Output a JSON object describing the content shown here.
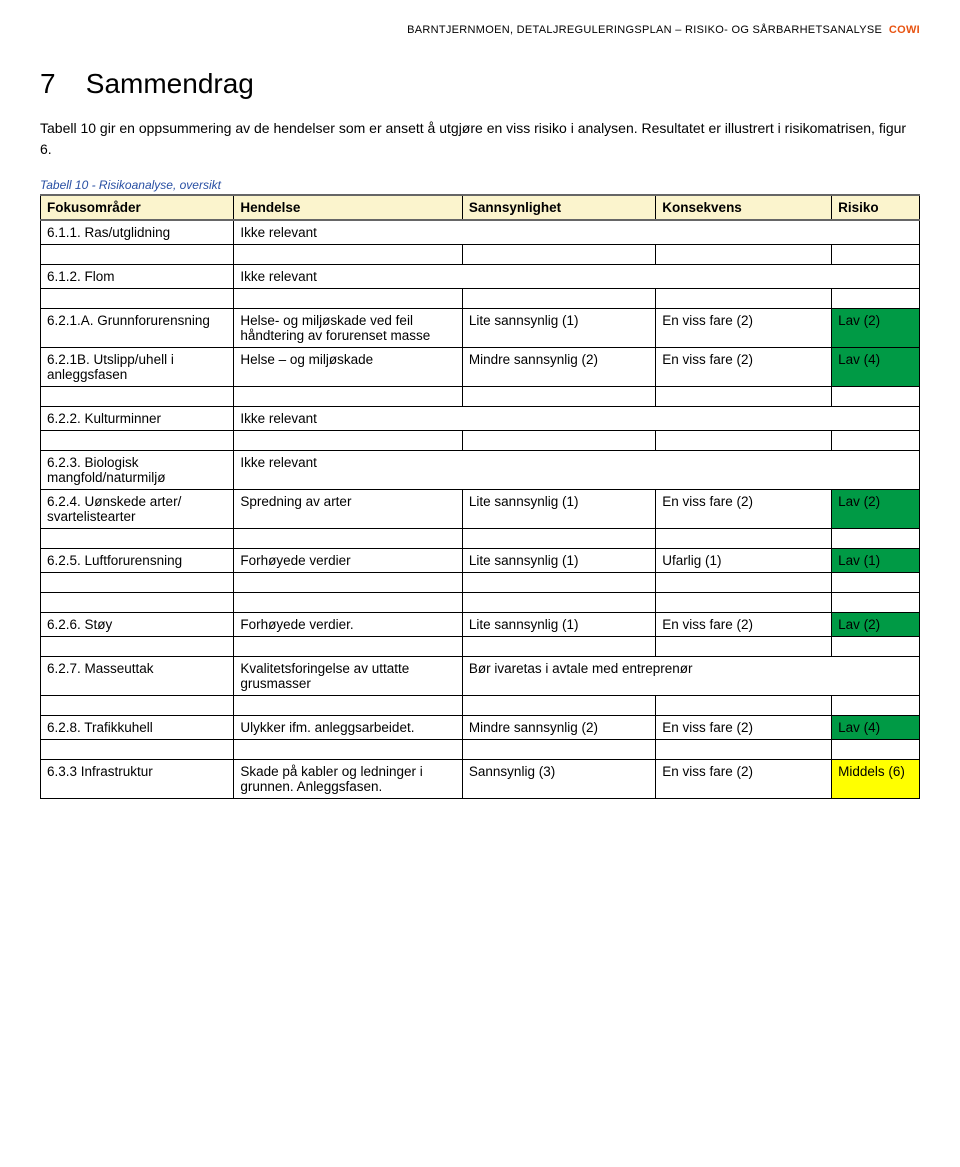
{
  "header": {
    "text": "BARNTJERNMOEN, DETALJREGULERINGSPLAN – RISIKO- OG SÅRBARHETSANALYSE",
    "logo": "COWI"
  },
  "title": {
    "num": "7",
    "text": "Sammendrag"
  },
  "intro": "Tabell 10 gir en oppsummering av de hendelser som er ansett å utgjøre en viss risiko i analysen. Resultatet er illustrert i risikomatrisen, figur 6.",
  "caption": "Tabell 10 - Risikoanalyse, oversikt",
  "columns": [
    "Fokusområder",
    "Hendelse",
    "Sannsynlighet",
    "Konsekvens",
    "Risiko"
  ],
  "colors": {
    "header_bg": "#fbf4cd",
    "risk_green": "#009a45",
    "risk_yellow": "#ffff00",
    "logo": "#e85412",
    "caption": "#284fa3"
  },
  "rows": {
    "r1": {
      "focus": "6.1.1. Ras/utglidning",
      "center": "Ikke relevant"
    },
    "r2": {
      "focus": "6.1.2. Flom",
      "center": "Ikke relevant"
    },
    "r3": {
      "focus": "6.2.1.A. Grunnforurensning",
      "event": "Helse- og miljøskade ved feil håndtering av forurenset masse",
      "prob": "Lite sannsynlig (1)",
      "cons": "En viss fare (2)",
      "risk": "Lav (2)",
      "risk_class": "risk-green"
    },
    "r4": {
      "focus": "6.2.1B. Utslipp/uhell i anleggsfasen",
      "event": "Helse – og miljøskade",
      "prob": "Mindre sannsynlig (2)",
      "cons": "En viss fare (2)",
      "risk": "Lav (4)",
      "risk_class": "risk-green"
    },
    "r5": {
      "focus": "6.2.2. Kulturminner",
      "center": "Ikke relevant"
    },
    "r6": {
      "focus": "6.2.3. Biologisk mangfold/naturmiljø",
      "center": "Ikke relevant"
    },
    "r7": {
      "focus": "6.2.4. Uønskede arter/ svartelistearter",
      "event": "Spredning av arter",
      "prob": "Lite sannsynlig (1)",
      "cons": "En viss fare (2)",
      "risk": "Lav (2)",
      "risk_class": "risk-green"
    },
    "r8": {
      "focus": "6.2.5. Luftforurensning",
      "event": "Forhøyede verdier",
      "prob": "Lite sannsynlig (1)",
      "cons": "Ufarlig (1)",
      "risk": "Lav (1)",
      "risk_class": "risk-green"
    },
    "r9": {
      "focus": "6.2.6. Støy",
      "event": "Forhøyede verdier.",
      "prob": "Lite sannsynlig (1)",
      "cons": "En viss fare (2)",
      "risk": "Lav (2)",
      "risk_class": "risk-green"
    },
    "r10": {
      "focus": "6.2.7. Masseuttak",
      "event": "Kvalitetsforingelse av uttatte grusmasser",
      "note": "Bør ivaretas i avtale med entreprenør"
    },
    "r11": {
      "focus": "6.2.8. Trafikkuhell",
      "event": "Ulykker ifm. anleggsarbeidet.",
      "prob": "Mindre sannsynlig (2)",
      "cons": "En viss fare (2)",
      "risk": "Lav (4)",
      "risk_class": "risk-green"
    },
    "r12": {
      "focus": "6.3.3 Infrastruktur",
      "event": "Skade på kabler og ledninger i grunnen. Anleggsfasen.",
      "prob": "Sannsynlig (3)",
      "cons": "En viss fare (2)",
      "risk": "Middels (6)",
      "risk_class": "risk-yellow"
    }
  }
}
